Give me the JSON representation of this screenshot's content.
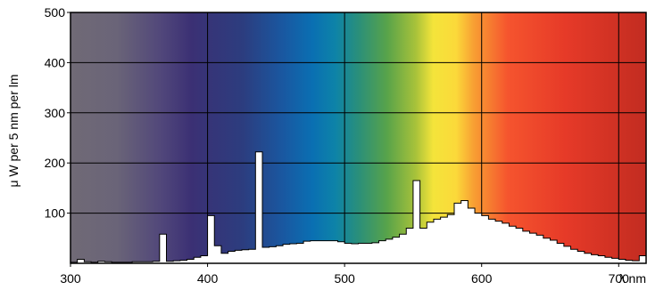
{
  "chart_data": {
    "type": "area",
    "title": "",
    "xlabel": "λ nm",
    "ylabel": "μ W per 5 nm per lm",
    "xlim": [
      300,
      720
    ],
    "ylim": [
      0,
      500
    ],
    "xticks": [
      300,
      400,
      500,
      600,
      700
    ],
    "yticks": [
      100,
      200,
      300,
      400,
      500
    ],
    "grid": true,
    "background": "visible-spectrum gradient",
    "fill_color": "#ffffff",
    "series": [
      {
        "style": "step",
        "x": [
          300,
          305,
          310,
          315,
          320,
          325,
          330,
          335,
          340,
          345,
          350,
          355,
          360,
          365,
          370,
          375,
          380,
          385,
          390,
          395,
          400,
          405,
          410,
          415,
          420,
          425,
          430,
          435,
          440,
          445,
          450,
          455,
          460,
          465,
          470,
          475,
          480,
          485,
          490,
          495,
          500,
          505,
          510,
          515,
          520,
          525,
          530,
          535,
          540,
          545,
          550,
          555,
          560,
          565,
          570,
          575,
          580,
          585,
          590,
          595,
          600,
          605,
          610,
          615,
          620,
          625,
          630,
          635,
          640,
          645,
          650,
          655,
          660,
          665,
          670,
          675,
          680,
          685,
          690,
          695,
          700,
          705,
          710,
          715
        ],
        "y": [
          2,
          8,
          3,
          2,
          4,
          3,
          2,
          2,
          2,
          3,
          3,
          3,
          4,
          58,
          4,
          5,
          6,
          8,
          12,
          15,
          95,
          35,
          20,
          24,
          26,
          27,
          28,
          222,
          32,
          33,
          35,
          38,
          39,
          40,
          44,
          45,
          45,
          45,
          45,
          43,
          40,
          39,
          40,
          40,
          41,
          45,
          48,
          52,
          58,
          70,
          165,
          70,
          82,
          88,
          92,
          97,
          120,
          125,
          110,
          100,
          95,
          88,
          84,
          80,
          74,
          70,
          64,
          60,
          56,
          50,
          46,
          40,
          34,
          28,
          24,
          20,
          17,
          15,
          12,
          10,
          8,
          6,
          5,
          15
        ]
      }
    ]
  }
}
